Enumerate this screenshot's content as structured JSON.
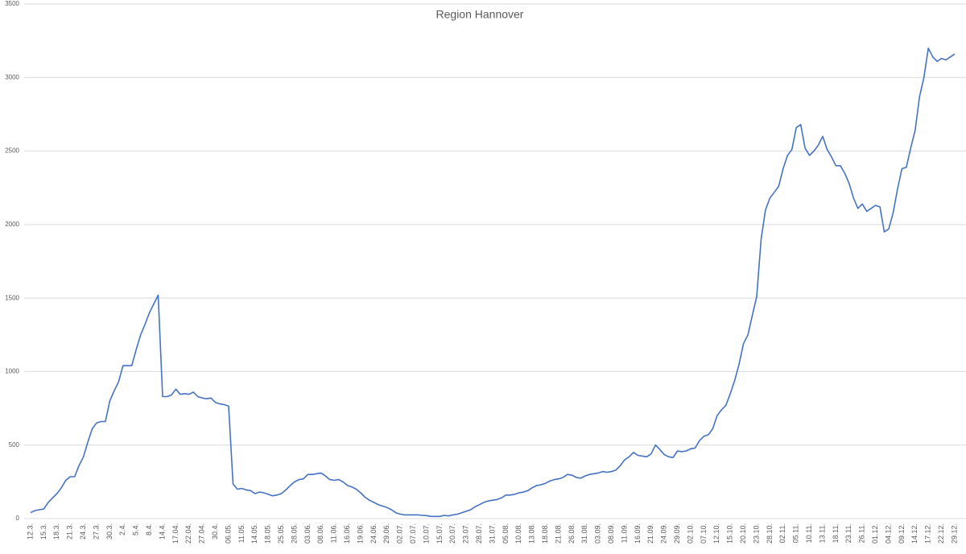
{
  "chart_data": {
    "type": "line",
    "title": "Region Hannover",
    "categories": [
      "12.3.",
      null,
      null,
      "15.3.",
      null,
      null,
      "18.3.",
      null,
      null,
      "21.3.",
      null,
      null,
      "24.3.",
      null,
      null,
      "27.3.",
      null,
      null,
      "30.3.",
      null,
      null,
      "2.4.",
      null,
      null,
      "5.4.",
      null,
      null,
      "8.4.",
      null,
      null,
      "14.4.",
      null,
      null,
      "17.04.",
      null,
      null,
      "22.04.",
      null,
      null,
      "27.04.",
      null,
      null,
      "30.4.",
      null,
      null,
      "06.05.",
      null,
      null,
      "11.05.",
      null,
      null,
      "14.05.",
      null,
      null,
      "18.05.",
      null,
      null,
      "25.05.",
      null,
      null,
      "28.05.",
      null,
      null,
      "03.06.",
      null,
      null,
      "08.06.",
      null,
      null,
      "11.06.",
      null,
      null,
      "16.06.",
      null,
      null,
      "19.06.",
      null,
      null,
      "24.06.",
      null,
      null,
      "29.06.",
      null,
      null,
      "02.07.",
      null,
      null,
      "07.07.",
      null,
      null,
      "10.07.",
      null,
      null,
      "15.07.",
      null,
      null,
      "20.07.",
      null,
      null,
      "23.07.",
      null,
      null,
      "28.07.",
      null,
      null,
      "31.07.",
      null,
      null,
      "05.08.",
      null,
      null,
      "10.08.",
      null,
      null,
      "13.08.",
      null,
      null,
      "18.08.",
      null,
      null,
      "21.08.",
      null,
      null,
      "26.08.",
      null,
      null,
      "31.08.",
      null,
      null,
      "03.09.",
      null,
      null,
      "08.09.",
      null,
      null,
      "11.09.",
      null,
      null,
      "16.09.",
      null,
      null,
      "21.09.",
      null,
      null,
      "24.09.",
      null,
      null,
      "29.09.",
      null,
      null,
      "02.10.",
      null,
      null,
      "07.10.",
      null,
      null,
      "12.10.",
      null,
      null,
      "15.10.",
      null,
      null,
      "20.10.",
      null,
      null,
      "23.10.",
      null,
      null,
      "28.10.",
      null,
      null,
      "02.11.",
      null,
      null,
      "05.11.",
      null,
      null,
      "10.11.",
      null,
      null,
      "13.11.",
      null,
      null,
      "18.11.",
      null,
      null,
      "23.11.",
      null,
      null,
      "26.11.",
      null,
      null,
      "01.12.",
      null,
      null,
      "04.12.",
      null,
      null,
      "09.12.",
      null,
      null,
      "14.12.",
      null,
      null,
      "17.12.",
      null,
      null,
      "22.12.",
      null,
      null,
      "29.12."
    ],
    "series": [
      {
        "color": "#4472c4",
        "values": [
          40,
          55,
          60,
          65,
          110,
          140,
          170,
          210,
          260,
          285,
          285,
          360,
          420,
          520,
          610,
          650,
          660,
          660,
          800,
          870,
          930,
          1040,
          1040,
          1040,
          1150,
          1250,
          1320,
          1400,
          1460,
          1520,
          830,
          830,
          840,
          880,
          845,
          850,
          845,
          860,
          830,
          820,
          815,
          820,
          790,
          780,
          775,
          765,
          235,
          200,
          205,
          195,
          190,
          170,
          180,
          175,
          165,
          155,
          160,
          170,
          195,
          225,
          250,
          265,
          270,
          300,
          300,
          305,
          310,
          290,
          265,
          260,
          265,
          250,
          225,
          215,
          200,
          175,
          145,
          125,
          110,
          95,
          85,
          75,
          60,
          40,
          30,
          25,
          25,
          25,
          25,
          22,
          20,
          15,
          15,
          15,
          22,
          18,
          25,
          30,
          40,
          50,
          60,
          80,
          95,
          110,
          120,
          125,
          130,
          140,
          160,
          160,
          165,
          175,
          180,
          190,
          210,
          225,
          230,
          240,
          255,
          265,
          270,
          280,
          300,
          295,
          280,
          275,
          290,
          300,
          305,
          310,
          320,
          315,
          320,
          330,
          360,
          400,
          420,
          450,
          430,
          425,
          420,
          440,
          500,
          470,
          435,
          420,
          415,
          460,
          455,
          460,
          475,
          480,
          530,
          560,
          570,
          610,
          700,
          740,
          770,
          850,
          940,
          1050,
          1190,
          1250,
          1380,
          1510,
          1900,
          2100,
          2180,
          2220,
          2260,
          2380,
          2470,
          2510,
          2660,
          2680,
          2520,
          2470,
          2500,
          2540,
          2600,
          2510,
          2460,
          2400,
          2400,
          2350,
          2280,
          2180,
          2110,
          2140,
          2090,
          2110,
          2130,
          2120,
          1950,
          1970,
          2080,
          2240,
          2380,
          2390,
          2520,
          2640,
          2870,
          3000,
          3200,
          3140,
          3110,
          3130,
          3120,
          3140,
          3160
        ]
      }
    ],
    "ylim": [
      0,
      3500
    ],
    "yticks": [
      0,
      500,
      1000,
      1500,
      2000,
      2500,
      3000,
      3500
    ],
    "grid": true
  }
}
